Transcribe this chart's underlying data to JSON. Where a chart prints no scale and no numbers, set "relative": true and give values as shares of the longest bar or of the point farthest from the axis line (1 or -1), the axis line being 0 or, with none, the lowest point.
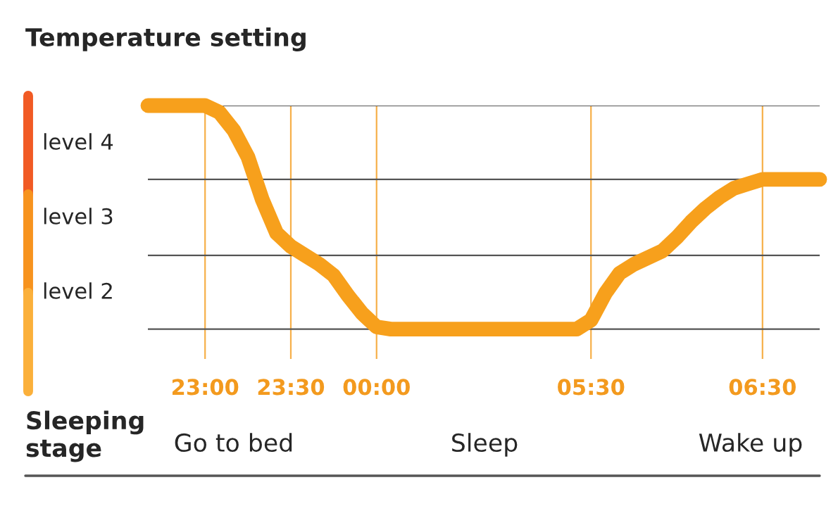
{
  "chart_data": {
    "type": "line",
    "title": "Temperature setting",
    "relative": true,
    "categories": [
      null,
      null,
      null,
      null,
      "23:00",
      null,
      null,
      null,
      null,
      null,
      "23:30",
      null,
      null,
      null,
      null,
      null,
      "00:00",
      null,
      null,
      null,
      null,
      null,
      null,
      null,
      null,
      null,
      null,
      null,
      null,
      null,
      null,
      "05:30",
      null,
      null,
      null,
      null,
      null,
      null,
      null,
      null,
      null,
      null,
      null,
      "06:30",
      null,
      null,
      null,
      null
    ],
    "series": [
      {
        "color": "#f7a01c",
        "values": [
          1,
          1,
          1,
          1,
          1,
          0.97,
          0.89,
          0.77,
          0.58,
          0.43,
          0.37,
          0.33,
          0.29,
          0.24,
          0.15,
          0.07,
          0.01,
          0,
          0,
          0,
          0,
          0,
          0,
          0,
          0,
          0,
          0,
          0,
          0,
          0,
          0,
          0.04,
          0.16,
          0.25,
          0.29,
          0.32,
          0.35,
          0.41,
          0.48,
          0.54,
          0.59,
          0.63,
          0.65,
          0.67,
          0.67,
          0.67,
          0.67,
          0.67
        ]
      }
    ],
    "ref_lines": [
      {
        "axis": "y",
        "value": 0,
        "color": "#555555"
      },
      {
        "axis": "y",
        "value": 0.33,
        "color": "#555555"
      },
      {
        "axis": "y",
        "value": 0.67,
        "color": "#555555"
      },
      {
        "axis": "y",
        "value": 1,
        "color": "#555555"
      }
    ],
    "grid": "x",
    "line_style": "solid",
    "annotations": [
      "level 4",
      "level 3",
      "level 2",
      "Sleeping stage",
      "Go to bed",
      "Sleep",
      "Wake up"
    ]
  }
}
